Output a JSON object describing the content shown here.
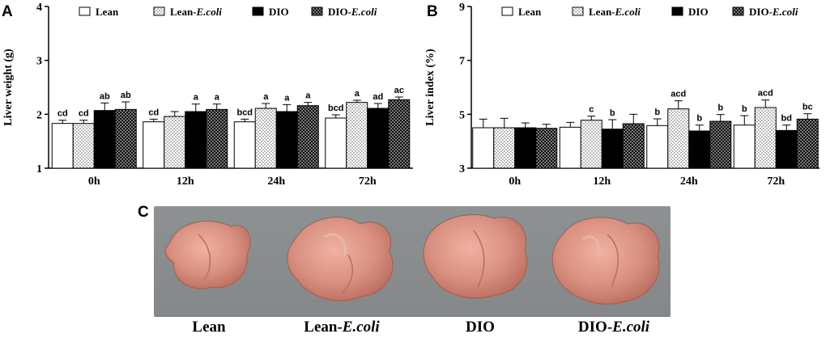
{
  "chart_data": [
    {
      "panel": "A",
      "type": "bar",
      "ylabel": "Liver weight (g)",
      "ylim": [
        1,
        4
      ],
      "yticks": [
        1,
        2,
        3,
        4
      ],
      "categories": [
        "0h",
        "12h",
        "24h",
        "72h"
      ],
      "legend": "top",
      "series": [
        {
          "name": "Lean",
          "values": [
            1.83,
            1.86,
            1.86,
            1.93
          ],
          "errors": [
            0.06,
            0.05,
            0.05,
            0.06
          ]
        },
        {
          "name": "Lean-E.coli",
          "values": [
            1.83,
            1.96,
            2.11,
            2.22
          ],
          "errors": [
            0.06,
            0.09,
            0.09,
            0.04
          ]
        },
        {
          "name": "DIO",
          "values": [
            2.07,
            2.05,
            2.05,
            2.11
          ],
          "errors": [
            0.14,
            0.14,
            0.13,
            0.09
          ]
        },
        {
          "name": "DIO-E.coli",
          "values": [
            2.09,
            2.09,
            2.16,
            2.27
          ],
          "errors": [
            0.14,
            0.1,
            0.06,
            0.05
          ]
        }
      ],
      "annotations": [
        [
          "cd",
          "cd",
          "ab",
          "ab"
        ],
        [
          "cd",
          "",
          "a",
          "a"
        ],
        [
          "bcd",
          "a",
          "a",
          "a"
        ],
        [
          "bcd",
          "a",
          "ad",
          "ac"
        ]
      ]
    },
    {
      "panel": "B",
      "type": "bar",
      "ylabel": "Liver index (%)",
      "ylim": [
        3,
        9
      ],
      "yticks": [
        3,
        5,
        7,
        9
      ],
      "categories": [
        "0h",
        "12h",
        "24h",
        "72h"
      ],
      "legend": "top",
      "series": [
        {
          "name": "Lean",
          "values": [
            4.5,
            4.52,
            4.58,
            4.6
          ],
          "errors": [
            0.32,
            0.18,
            0.25,
            0.35
          ]
        },
        {
          "name": "Lean-E.coli",
          "values": [
            4.5,
            4.78,
            5.2,
            5.25
          ],
          "errors": [
            0.35,
            0.15,
            0.3,
            0.28
          ]
        },
        {
          "name": "DIO",
          "values": [
            4.5,
            4.45,
            4.38,
            4.4
          ],
          "errors": [
            0.18,
            0.35,
            0.22,
            0.2
          ]
        },
        {
          "name": "DIO-E.coli",
          "values": [
            4.48,
            4.65,
            4.74,
            4.82
          ],
          "errors": [
            0.15,
            0.35,
            0.25,
            0.2
          ]
        }
      ],
      "annotations": [
        [
          "",
          "",
          "",
          ""
        ],
        [
          "",
          "c",
          "b",
          ""
        ],
        [
          "b",
          "acd",
          "b",
          "b"
        ],
        [
          "b",
          "acd",
          "bd",
          "bc"
        ]
      ]
    }
  ],
  "panel_labels": {
    "a": "A",
    "b": "B",
    "c": "C"
  },
  "legend_labels": {
    "lean": "Lean",
    "lean_ecoli_prefix": "Lean-",
    "dio": "DIO",
    "dio_ecoli_prefix": "DIO-",
    "ecoli": "E.coli"
  },
  "photo": {
    "labels": [
      {
        "prefix": "Lean",
        "italic": ""
      },
      {
        "prefix": "Lean-",
        "italic": "E.coli"
      },
      {
        "prefix": "DIO",
        "italic": ""
      },
      {
        "prefix": "DIO-",
        "italic": "E.coli"
      }
    ]
  },
  "colors": {
    "lean": "#ffffff",
    "dio": "#000000",
    "liver": "#d98f7f",
    "background": "#8a8d8e"
  }
}
